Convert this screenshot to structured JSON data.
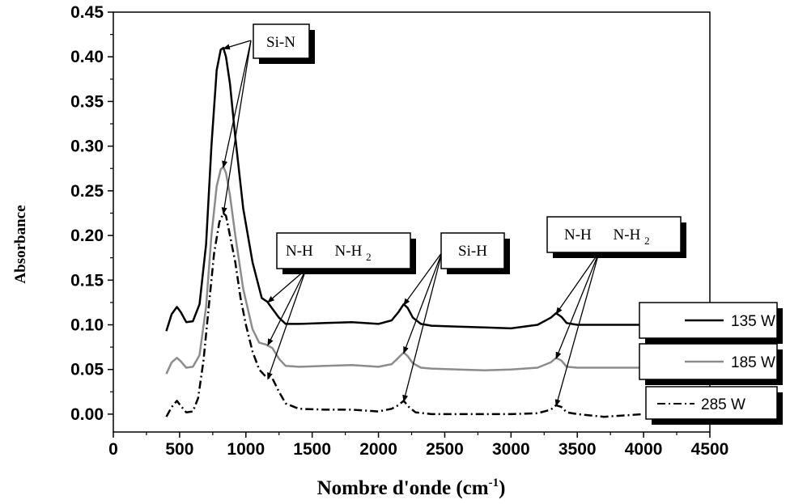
{
  "chart_data": {
    "type": "line",
    "xlabel_main": "Nombre d'onde (cm",
    "xlabel_sup": "-1",
    "xlabel_end": ")",
    "ylabel": "Absorbance",
    "xlim": [
      0,
      4500
    ],
    "ylim": [
      -0.02,
      0.45
    ],
    "x_ticks": [
      "0",
      "500",
      "1000",
      "1500",
      "2000",
      "2500",
      "3000",
      "3500",
      "4000",
      "4500"
    ],
    "y_ticks": [
      "0.00",
      "0.05",
      "0.10",
      "0.15",
      "0.20",
      "0.25",
      "0.30",
      "0.35",
      "0.40",
      "0.45"
    ],
    "series": [
      {
        "name": "135 W",
        "color": "#000000",
        "dash": "solid",
        "x": [
          400,
          440,
          480,
          510,
          550,
          600,
          650,
          700,
          740,
          780,
          810,
          830,
          850,
          880,
          920,
          980,
          1050,
          1120,
          1160,
          1200,
          1250,
          1300,
          1400,
          1600,
          1800,
          2000,
          2100,
          2150,
          2190,
          2220,
          2260,
          2320,
          2400,
          2600,
          2800,
          3000,
          3200,
          3300,
          3340,
          3380,
          3420,
          3500,
          3700,
          4000
        ],
        "y": [
          0.093,
          0.112,
          0.12,
          0.114,
          0.103,
          0.104,
          0.123,
          0.19,
          0.3,
          0.385,
          0.408,
          0.41,
          0.4,
          0.37,
          0.31,
          0.23,
          0.17,
          0.13,
          0.126,
          0.118,
          0.108,
          0.101,
          0.101,
          0.102,
          0.103,
          0.101,
          0.105,
          0.114,
          0.123,
          0.119,
          0.108,
          0.101,
          0.099,
          0.098,
          0.097,
          0.096,
          0.1,
          0.108,
          0.113,
          0.109,
          0.102,
          0.1,
          0.1,
          0.1
        ]
      },
      {
        "name": "185 W",
        "color": "#8c8c8c",
        "dash": "solid",
        "x": [
          400,
          440,
          480,
          510,
          550,
          600,
          650,
          700,
          740,
          780,
          810,
          830,
          850,
          880,
          920,
          980,
          1050,
          1100,
          1150,
          1200,
          1250,
          1300,
          1400,
          1600,
          1800,
          2000,
          2100,
          2150,
          2190,
          2220,
          2260,
          2320,
          2400,
          2600,
          2800,
          3000,
          3200,
          3300,
          3340,
          3380,
          3420,
          3500,
          3700,
          4000
        ],
        "y": [
          0.045,
          0.058,
          0.063,
          0.059,
          0.052,
          0.053,
          0.066,
          0.12,
          0.2,
          0.255,
          0.274,
          0.277,
          0.27,
          0.245,
          0.2,
          0.14,
          0.095,
          0.08,
          0.078,
          0.074,
          0.062,
          0.054,
          0.053,
          0.054,
          0.055,
          0.053,
          0.056,
          0.063,
          0.069,
          0.065,
          0.057,
          0.052,
          0.051,
          0.05,
          0.049,
          0.05,
          0.052,
          0.058,
          0.063,
          0.06,
          0.053,
          0.052,
          0.052,
          0.052
        ]
      },
      {
        "name": "285 W",
        "color": "#000000",
        "dash": "dashdot",
        "x": [
          400,
          440,
          480,
          510,
          550,
          600,
          640,
          680,
          720,
          760,
          800,
          830,
          850,
          880,
          920,
          960,
          1000,
          1050,
          1100,
          1150,
          1200,
          1250,
          1300,
          1400,
          1600,
          1800,
          2000,
          2100,
          2150,
          2190,
          2230,
          2280,
          2400,
          2600,
          2800,
          3000,
          3200,
          3300,
          3340,
          3380,
          3420,
          3500,
          3700,
          4000
        ],
        "y": [
          -0.003,
          0.008,
          0.015,
          0.009,
          0.002,
          0.003,
          0.018,
          0.06,
          0.12,
          0.18,
          0.215,
          0.225,
          0.222,
          0.2,
          0.17,
          0.13,
          0.1,
          0.07,
          0.05,
          0.042,
          0.04,
          0.025,
          0.012,
          0.006,
          0.005,
          0.005,
          0.003,
          0.006,
          0.01,
          0.015,
          0.008,
          0.002,
          0.0,
          0.0,
          0.0,
          0.0,
          0.001,
          0.005,
          0.01,
          0.008,
          0.002,
          0.0,
          -0.003,
          0.0
        ]
      }
    ],
    "annotations": [
      {
        "id": "sin",
        "text": "Si-N",
        "sub": "",
        "text2": "",
        "sub2": "",
        "targets": [
          {
            "x": 830,
            "y": 0.41
          },
          {
            "x": 830,
            "y": 0.277
          },
          {
            "x": 830,
            "y": 0.225
          }
        ]
      },
      {
        "id": "nh1",
        "text": "N-H",
        "sub": "",
        "text2": "N-H",
        "sub2": "2",
        "targets": [
          {
            "x": 1165,
            "y": 0.126
          },
          {
            "x": 1165,
            "y": 0.078
          },
          {
            "x": 1165,
            "y": 0.04
          }
        ]
      },
      {
        "id": "sih",
        "text": "Si-H",
        "sub": "",
        "text2": "",
        "sub2": "",
        "targets": [
          {
            "x": 2190,
            "y": 0.123
          },
          {
            "x": 2190,
            "y": 0.069
          },
          {
            "x": 2190,
            "y": 0.015
          }
        ]
      },
      {
        "id": "nh2",
        "text": "N-H",
        "sub": "",
        "text2": "N-H",
        "sub2": "2",
        "targets": [
          {
            "x": 3340,
            "y": 0.113
          },
          {
            "x": 3340,
            "y": 0.063
          },
          {
            "x": 3340,
            "y": 0.01
          }
        ]
      }
    ]
  }
}
